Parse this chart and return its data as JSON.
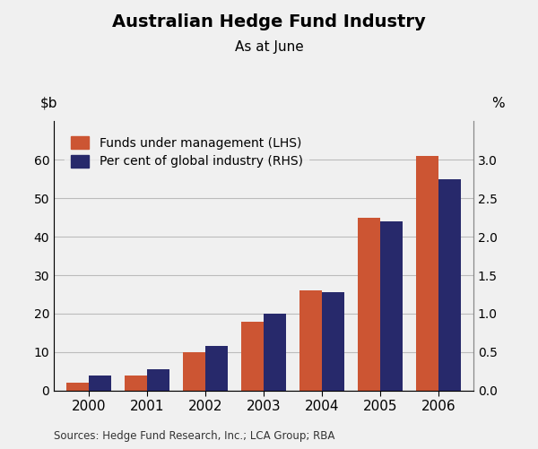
{
  "title": "Australian Hedge Fund Industry",
  "subtitle": "As at June",
  "years": [
    2000,
    2001,
    2002,
    2003,
    2004,
    2005,
    2006
  ],
  "funds_lhs": [
    2.0,
    4.0,
    10.0,
    18.0,
    26.0,
    45.0,
    61.0
  ],
  "pct_rhs": [
    0.2,
    0.28,
    0.58,
    1.0,
    1.28,
    2.2,
    2.75
  ],
  "bar_color_lhs": "#CC5533",
  "bar_color_rhs": "#27296B",
  "ylim_lhs": [
    0,
    70
  ],
  "ylim_rhs": [
    0,
    3.5
  ],
  "yticks_lhs": [
    0,
    10,
    20,
    30,
    40,
    50,
    60
  ],
  "yticks_rhs": [
    0.0,
    0.5,
    1.0,
    1.5,
    2.0,
    2.5,
    3.0
  ],
  "ylabel_right": "%",
  "legend_lhs": "Funds under management (LHS)",
  "legend_rhs": "Per cent of global industry (RHS)",
  "source_text": "Sources: Hedge Fund Research, Inc.; LCA Group; RBA",
  "background_color": "#f0f0f0",
  "grid_color": "#bbbbbb",
  "bar_width": 0.38
}
